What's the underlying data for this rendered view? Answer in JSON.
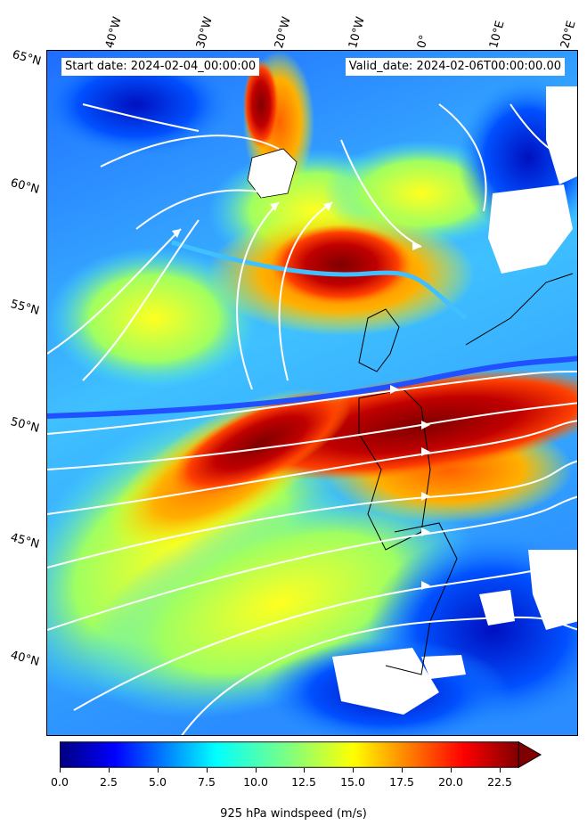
{
  "map": {
    "start_label": "Start date: 2024-02-04_00:00:00",
    "valid_label": "Valid_date: 2024-02-06T00:00:00.00",
    "lat_labels": [
      "65°N",
      "60°N",
      "55°N",
      "50°N",
      "45°N",
      "40°N"
    ],
    "lon_labels": [
      "40°W",
      "30°W",
      "20°W",
      "10°W",
      "0°",
      "10°E",
      "20°E"
    ]
  },
  "colorbar": {
    "ticks": [
      "0.0",
      "2.5",
      "5.0",
      "7.5",
      "10.0",
      "12.5",
      "15.0",
      "17.5",
      "20.0",
      "22.5"
    ],
    "label": "925 hPa windspeed (m/s)",
    "colors": [
      "#00007f",
      "#0000ff",
      "#007fff",
      "#00ffff",
      "#7fff7f",
      "#ffff00",
      "#ff7f00",
      "#ff0000",
      "#7f0000"
    ]
  }
}
